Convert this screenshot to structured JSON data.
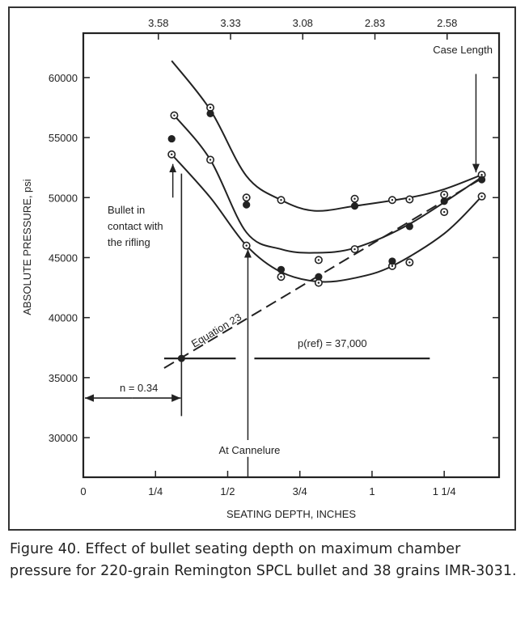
{
  "chart_data": {
    "type": "line",
    "xlabel": "SEATING DEPTH, INCHES",
    "ylabel": "ABSOLUTE PRESSURE, psi",
    "xlim": [
      0,
      1.44
    ],
    "ylim": [
      26700,
      63700
    ],
    "grid": false,
    "x_ticks": [
      {
        "value": 0,
        "label": "0"
      },
      {
        "value": 0.25,
        "label": "1/4"
      },
      {
        "value": 0.5,
        "label": "1/2"
      },
      {
        "value": 0.75,
        "label": "3/4"
      },
      {
        "value": 1.0,
        "label": "1"
      },
      {
        "value": 1.25,
        "label": "1 1/4"
      }
    ],
    "top_axis_ticks": [
      {
        "value": 0.26,
        "label": "3.58"
      },
      {
        "value": 0.51,
        "label": "3.33"
      },
      {
        "value": 0.76,
        "label": "3.08"
      },
      {
        "value": 1.01,
        "label": "2.83"
      },
      {
        "value": 1.26,
        "label": "2.58"
      }
    ],
    "y_ticks": [
      {
        "value": 30000,
        "label": "30000"
      },
      {
        "value": 35000,
        "label": "35000"
      },
      {
        "value": 40000,
        "label": "40000"
      },
      {
        "value": 45000,
        "label": "45000"
      },
      {
        "value": 50000,
        "label": "50000"
      },
      {
        "value": 55000,
        "label": "55000"
      },
      {
        "value": 60000,
        "label": "60000"
      }
    ],
    "series": [
      {
        "curve": [
          [
            0.306,
            61400
          ],
          [
            0.44,
            57300
          ],
          [
            0.565,
            51800
          ],
          [
            0.685,
            49800
          ],
          [
            0.8,
            48900
          ],
          [
            0.94,
            49300
          ],
          [
            1.13,
            50000
          ],
          [
            1.25,
            50700
          ],
          [
            1.38,
            51900
          ]
        ],
        "hollow": [
          [
            0.44,
            57500
          ],
          [
            0.565,
            50000
          ],
          [
            0.685,
            49800
          ],
          [
            0.94,
            49900
          ],
          [
            1.07,
            49800
          ],
          [
            1.13,
            49850
          ],
          [
            1.25,
            50250
          ],
          [
            1.38,
            51900
          ]
        ],
        "filled": [
          [
            0.44,
            57000
          ],
          [
            0.565,
            49400
          ],
          [
            0.94,
            49300
          ],
          [
            1.25,
            49700
          ]
        ]
      },
      {
        "curve": [
          [
            0.315,
            56850
          ],
          [
            0.44,
            53150
          ],
          [
            0.565,
            47100
          ],
          [
            0.685,
            45700
          ],
          [
            0.8,
            45400
          ],
          [
            0.94,
            45800
          ],
          [
            1.13,
            47800
          ],
          [
            1.38,
            51700
          ]
        ],
        "hollow": [
          [
            0.315,
            56850
          ],
          [
            0.44,
            53150
          ],
          [
            0.815,
            44800
          ],
          [
            0.94,
            45700
          ],
          [
            1.25,
            48800
          ]
        ],
        "filled": [
          [
            0.306,
            54900
          ],
          [
            1.13,
            47600
          ],
          [
            1.38,
            51500
          ]
        ]
      },
      {
        "curve": [
          [
            0.306,
            53600
          ],
          [
            0.44,
            50000
          ],
          [
            0.565,
            46000
          ],
          [
            0.685,
            43800
          ],
          [
            0.815,
            43000
          ],
          [
            0.94,
            43300
          ],
          [
            1.07,
            44300
          ],
          [
            1.25,
            47000
          ],
          [
            1.38,
            50100
          ]
        ],
        "hollow": [
          [
            0.306,
            53600
          ],
          [
            0.565,
            46000
          ],
          [
            0.685,
            43400
          ],
          [
            0.815,
            42900
          ],
          [
            1.07,
            44300
          ],
          [
            1.13,
            44600
          ],
          [
            1.38,
            50100
          ]
        ],
        "filled": [
          [
            0.685,
            44000
          ],
          [
            0.815,
            43400
          ],
          [
            1.07,
            44700
          ]
        ]
      }
    ],
    "equation_line": {
      "label": "Equation 23",
      "points": [
        [
          0.28,
          35800
        ],
        [
          1.38,
          51600
        ]
      ]
    },
    "reference_line": {
      "label": "p(ref) = 37,000",
      "y": 36600,
      "x_range": [
        0.28,
        1.2
      ]
    },
    "n_marker": {
      "label": "n = 0.34",
      "x": 0.34,
      "y": 33300
    },
    "annotations": {
      "case_length": {
        "label": "Case Length",
        "x": 1.36
      },
      "bullet_contact": {
        "lines": [
          "Bullet in",
          "contact with",
          "the rifling"
        ],
        "x": 0.31
      },
      "cannelure": {
        "label": "At Cannelure",
        "x": 0.57
      }
    }
  },
  "caption": "Figure 40. Effect of bullet seating depth on maximum chamber pressure for 220-grain Remington SPCL bullet and 38 grains IMR-3031."
}
